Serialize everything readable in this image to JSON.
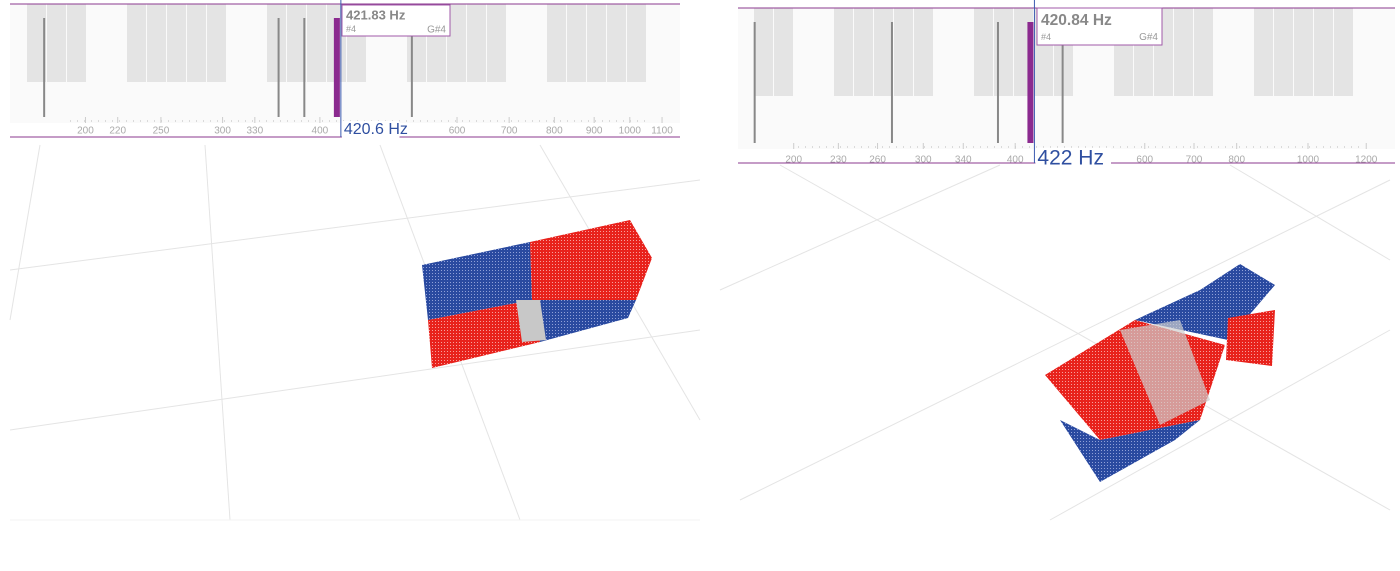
{
  "panels": [
    {
      "xlim": [
        160,
        1160
      ],
      "xticks": [
        200,
        220,
        250,
        300,
        330,
        400,
        600,
        700,
        800,
        900,
        1000,
        1100
      ],
      "readout": "420.6 Hz",
      "tooltip": {
        "freq": "421.83 Hz",
        "left": "#4",
        "right": "G#4"
      },
      "main_peak": 421.83,
      "peaks": [
        177,
        354,
        382,
        525
      ]
    },
    {
      "xlim": [
        168,
        1313
      ],
      "xticks": [
        200,
        230,
        260,
        300,
        340,
        400,
        600,
        700,
        800,
        1000,
        1200
      ],
      "readout": "422 Hz",
      "tooltip": {
        "freq": "420.84 Hz",
        "left": "#4",
        "right": "G#4"
      },
      "main_peak": 420.84,
      "peaks": [
        177,
        272,
        379,
        464
      ]
    }
  ]
}
